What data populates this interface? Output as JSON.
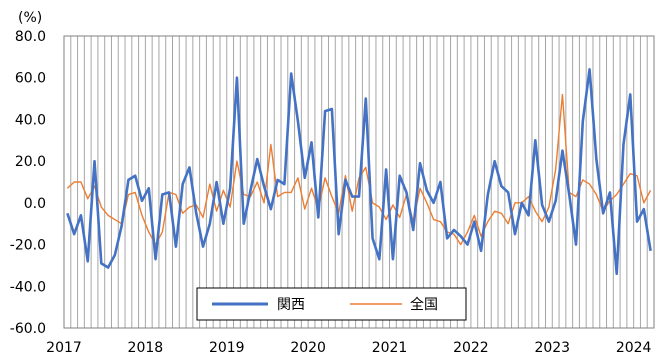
{
  "chart_data": {
    "type": "line",
    "unit_label": "(%)",
    "ylim": [
      -60,
      80
    ],
    "yticks": [
      "80.0",
      "60.0",
      "40.0",
      "20.0",
      "0.0",
      "-20.0",
      "-40.0",
      "-60.0"
    ],
    "x_start_year": 2017,
    "x_labels": [
      "2017",
      "2018",
      "2019",
      "2020",
      "2021",
      "2022",
      "2023",
      "2024"
    ],
    "grid": "vertical-monthly",
    "legend_position": "bottom-center",
    "series": [
      {
        "name": "関西",
        "color": "#4472C4",
        "values": [
          -5,
          -15,
          -6,
          -28,
          20,
          -29,
          -31,
          -25,
          -11,
          11,
          13,
          1,
          7,
          -27,
          4,
          5,
          -21,
          9,
          17,
          -5,
          -21,
          -10,
          10,
          -10,
          7,
          60,
          -10,
          6,
          21,
          8,
          -3,
          11,
          9,
          62,
          39,
          12,
          29,
          -7,
          44,
          45,
          -15,
          11,
          3,
          3,
          50,
          -17,
          -27,
          16,
          -27,
          13,
          5,
          -13,
          19,
          6,
          0,
          10,
          -17,
          -13,
          -16,
          -20,
          -9,
          -23,
          4,
          20,
          8,
          5,
          -15,
          0,
          -6,
          30,
          -1,
          -9,
          1,
          25,
          4,
          -20,
          39,
          64,
          21,
          -5,
          5,
          -34,
          28,
          52,
          -9,
          -3,
          -23
        ]
      },
      {
        "name": "全国",
        "color": "#ED7D31",
        "values": [
          7,
          10,
          10,
          2,
          8,
          -2,
          -6,
          -8,
          -10,
          4,
          5,
          -6,
          -14,
          -20,
          -14,
          5,
          4,
          -5,
          -2,
          -1,
          -7,
          9,
          -4,
          6,
          -2,
          20,
          4,
          3,
          10,
          0,
          28,
          3,
          5,
          5,
          12,
          -3,
          7,
          -3,
          12,
          3,
          -5,
          13,
          -4,
          12,
          17,
          0,
          -2,
          -8,
          -1,
          -7,
          4,
          -9,
          7,
          0,
          -8,
          -9,
          -14,
          -15,
          -20,
          -14,
          -6,
          -16,
          -9,
          -4,
          -5,
          -10,
          0,
          0,
          3,
          -4,
          -9,
          -2,
          16,
          52,
          5,
          3,
          11,
          9,
          4,
          -4,
          1,
          4,
          9,
          14,
          13,
          0,
          6
        ]
      }
    ]
  }
}
